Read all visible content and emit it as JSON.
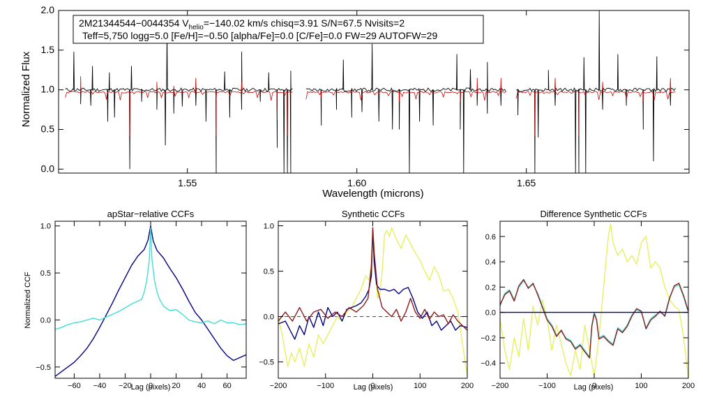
{
  "colors": {
    "axis": "#000000",
    "observed": "#000000",
    "model": "#cc0000",
    "navy": "#000080",
    "cyan": "#40e0d0",
    "yellow": "#e6f060",
    "darkred": "#8b1a1a",
    "zero_line": "#555555"
  },
  "header": {
    "line1": "2M21344544−0044354  V",
    "sub": "helio",
    "line1b": "=−140.02 km/s  chisq=3.91  S/N=67.5  Nvisits=2",
    "line2": "Teff=5,750 logg=5.0 [Fe/H]=−0.50 [alpha/Fe]=0.0 [C/Fe]=0.0 FW=29 AUTOFW=29"
  },
  "chart_data": [
    {
      "id": "spectrum",
      "type": "line",
      "title": "",
      "xlabel": "Wavelength (microns)",
      "ylabel": "Normalized Flux",
      "xlim": [
        1.512,
        1.698
      ],
      "ylim": [
        -0.05,
        2.0
      ],
      "xticks": [
        1.55,
        1.6,
        1.65
      ],
      "xtick_labels": [
        "1.55",
        "1.60",
        "1.65"
      ],
      "yticks": [
        0.0,
        0.5,
        1.0,
        1.5,
        2.0
      ],
      "ytick_labels": [
        "0.0",
        "0.5",
        "1.0",
        "1.5",
        "2.0"
      ],
      "chips": [
        [
          1.514,
          1.581
        ],
        [
          1.585,
          1.644
        ],
        [
          1.647,
          1.694
        ]
      ],
      "series": [
        {
          "name": "observed",
          "continuum": 1.0,
          "color": "#000000"
        },
        {
          "name": "model",
          "continuum": 0.97,
          "color": "#cc0000"
        }
      ],
      "spikes": [
        [
          1.5165,
          1.48
        ],
        [
          1.522,
          1.3
        ],
        [
          1.527,
          1.22
        ],
        [
          1.5335,
          1.3
        ],
        [
          1.544,
          1.78
        ],
        [
          1.561,
          1.23
        ],
        [
          1.566,
          1.48
        ],
        [
          1.574,
          1.22
        ],
        [
          1.5805,
          1.24
        ],
        [
          1.596,
          1.38
        ],
        [
          1.6045,
          1.58
        ],
        [
          1.6295,
          1.45
        ],
        [
          1.6335,
          1.26
        ],
        [
          1.6385,
          1.35
        ],
        [
          1.6565,
          1.25
        ],
        [
          1.667,
          1.41
        ],
        [
          1.6715,
          2.0
        ],
        [
          1.677,
          1.45
        ],
        [
          1.6885,
          1.42
        ]
      ],
      "dips": [
        [
          1.5185,
          0.82
        ],
        [
          1.5215,
          0.8
        ],
        [
          1.5265,
          0.6
        ],
        [
          1.5285,
          0.65
        ],
        [
          1.533,
          0.0
        ],
        [
          1.5365,
          0.85
        ],
        [
          1.541,
          0.75
        ],
        [
          1.5435,
          0.3
        ],
        [
          1.546,
          0.7
        ],
        [
          1.5485,
          0.79
        ],
        [
          1.5525,
          0.8
        ],
        [
          1.5555,
          0.6
        ],
        [
          1.5585,
          -0.05
        ],
        [
          1.5625,
          0.65
        ],
        [
          1.566,
          0.75
        ],
        [
          1.5715,
          0.85
        ],
        [
          1.5765,
          0.27
        ],
        [
          1.5785,
          -0.05
        ],
        [
          1.5795,
          -0.05
        ],
        [
          1.5805,
          -0.05
        ],
        [
          1.5895,
          0.55
        ],
        [
          1.594,
          0.75
        ],
        [
          1.5985,
          0.65
        ],
        [
          1.6015,
          0.72
        ],
        [
          1.6065,
          0.6
        ],
        [
          1.6105,
          0.5
        ],
        [
          1.6125,
          0.5
        ],
        [
          1.6155,
          -0.05
        ],
        [
          1.6185,
          0.6
        ],
        [
          1.6225,
          0.55
        ],
        [
          1.6305,
          0.5
        ],
        [
          1.6315,
          -0.05
        ],
        [
          1.6355,
          0.8
        ],
        [
          1.6385,
          0.7
        ],
        [
          1.6425,
          0.8
        ],
        [
          1.6475,
          0.68
        ],
        [
          1.6525,
          -0.05
        ],
        [
          1.6535,
          0.4
        ],
        [
          1.6585,
          0.8
        ],
        [
          1.6645,
          -0.05
        ],
        [
          1.6655,
          -0.05
        ],
        [
          1.6675,
          -0.05
        ],
        [
          1.6725,
          0.75
        ],
        [
          1.6795,
          0.8
        ],
        [
          1.6845,
          0.5
        ],
        [
          1.6875,
          0.1
        ],
        [
          1.6925,
          0.8
        ]
      ]
    },
    {
      "id": "apstar_ccf",
      "type": "line",
      "title": "apStar−relative CCFs",
      "xlabel": "Lag (pixels)",
      "ylabel": "Normalized CCF",
      "xlim": [
        -75,
        75
      ],
      "ylim": [
        -0.62,
        1.05
      ],
      "xticks": [
        -60,
        -40,
        -20,
        0,
        20,
        40,
        60
      ],
      "xtick_labels": [
        "−60",
        "−40",
        "−20",
        "0",
        "20",
        "40",
        "60"
      ],
      "yticks": [
        -0.5,
        0.0,
        0.5,
        1.0
      ],
      "ytick_labels": [
        "−0.5",
        "0.0",
        "0.5",
        "1.0"
      ],
      "series": [
        {
          "name": "navy",
          "color": "#000080",
          "x": [
            -75,
            -70,
            -65,
            -60,
            -55,
            -50,
            -45,
            -40,
            -35,
            -30,
            -25,
            -20,
            -15,
            -10,
            -5,
            -2,
            0,
            2,
            5,
            10,
            15,
            20,
            25,
            30,
            35,
            40,
            45,
            50,
            55,
            60,
            65,
            70,
            75
          ],
          "y": [
            -0.6,
            -0.55,
            -0.5,
            -0.45,
            -0.38,
            -0.3,
            -0.2,
            -0.08,
            0.05,
            0.18,
            0.32,
            0.45,
            0.58,
            0.68,
            0.75,
            0.85,
            1.0,
            0.84,
            0.74,
            0.66,
            0.55,
            0.45,
            0.33,
            0.2,
            0.08,
            0.0,
            -0.1,
            -0.2,
            -0.3,
            -0.38,
            -0.43,
            -0.4,
            -0.37
          ]
        },
        {
          "name": "cyan",
          "color": "#40e0d0",
          "x": [
            -75,
            -70,
            -65,
            -60,
            -55,
            -50,
            -45,
            -40,
            -35,
            -30,
            -25,
            -20,
            -15,
            -10,
            -7,
            -5,
            -3,
            -1,
            0,
            1,
            3,
            5,
            7,
            10,
            15,
            20,
            25,
            30,
            35,
            40,
            45,
            50,
            55,
            60,
            65,
            70,
            75
          ],
          "y": [
            -0.1,
            -0.08,
            -0.05,
            -0.03,
            -0.02,
            0.0,
            0.02,
            0.0,
            0.03,
            0.06,
            0.09,
            0.13,
            0.17,
            0.2,
            0.22,
            0.3,
            0.42,
            0.65,
            0.98,
            0.65,
            0.42,
            0.3,
            0.22,
            0.15,
            0.1,
            0.11,
            0.06,
            0.0,
            -0.02,
            -0.03,
            -0.01,
            -0.04,
            0.0,
            -0.03,
            -0.03,
            -0.05,
            -0.04
          ]
        }
      ]
    },
    {
      "id": "synthetic_ccf",
      "type": "line",
      "title": "Synthetic CCFs",
      "xlabel": "Lag (pixels)",
      "ylabel": "",
      "xlim": [
        -200,
        200
      ],
      "ylim": [
        -0.68,
        1.05
      ],
      "xticks": [
        -200,
        -100,
        0,
        100,
        200
      ],
      "xtick_labels": [
        "−200",
        "−100",
        "0",
        "100",
        "200"
      ],
      "yticks": [
        -0.5,
        0.0,
        0.5,
        1.0
      ],
      "ytick_labels": [
        "−0.5",
        "0.0",
        "0.5",
        "1.0"
      ],
      "zero_line": true,
      "series": [
        {
          "name": "yellow",
          "color": "#e6f060",
          "x": [
            -200,
            -190,
            -180,
            -172,
            -165,
            -155,
            -145,
            -135,
            -125,
            -115,
            -105,
            -95,
            -85,
            -75,
            -65,
            -55,
            -45,
            -35,
            -25,
            -15,
            -8,
            -3,
            0,
            5,
            10,
            15,
            20,
            25,
            30,
            35,
            40,
            50,
            60,
            70,
            80,
            90,
            100,
            110,
            120,
            130,
            140,
            150,
            160,
            170,
            180,
            190,
            200
          ],
          "y": [
            0.0,
            -0.25,
            -0.55,
            -0.4,
            -0.5,
            -0.35,
            -0.55,
            -0.3,
            -0.45,
            -0.2,
            -0.3,
            -0.2,
            -0.1,
            0.0,
            -0.05,
            0.05,
            0.1,
            0.2,
            0.3,
            0.45,
            0.4,
            0.6,
            0.98,
            0.6,
            0.2,
            0.25,
            0.5,
            0.9,
            0.95,
            0.88,
            0.98,
            0.85,
            0.75,
            0.9,
            0.8,
            0.7,
            0.62,
            0.5,
            0.4,
            0.55,
            0.45,
            0.28,
            0.3,
            0.2,
            0.05,
            -0.3,
            -0.65
          ]
        },
        {
          "name": "navy",
          "color": "#000080",
          "x": [
            -200,
            -185,
            -175,
            -165,
            -155,
            -145,
            -135,
            -125,
            -115,
            -105,
            -95,
            -85,
            -75,
            -65,
            -55,
            -45,
            -35,
            -25,
            -15,
            -8,
            -3,
            0,
            3,
            8,
            15,
            25,
            35,
            45,
            55,
            65,
            75,
            85,
            95,
            105,
            115,
            125,
            135,
            145,
            155,
            165,
            175,
            185,
            200
          ],
          "y": [
            -0.08,
            -0.05,
            -0.15,
            -0.25,
            -0.1,
            -0.2,
            0.0,
            -0.12,
            0.05,
            -0.1,
            0.1,
            0.0,
            0.05,
            -0.05,
            0.08,
            0.1,
            0.12,
            0.15,
            0.22,
            0.3,
            0.45,
            0.95,
            0.6,
            0.35,
            0.3,
            0.3,
            0.28,
            0.3,
            0.25,
            0.3,
            0.32,
            0.2,
            0.05,
            -0.02,
            0.05,
            -0.1,
            -0.05,
            -0.15,
            -0.1,
            -0.05,
            -0.15,
            -0.1,
            -0.12
          ]
        },
        {
          "name": "darkred",
          "color": "#8b1a1a",
          "x": [
            -200,
            -185,
            -170,
            -155,
            -140,
            -125,
            -110,
            -95,
            -80,
            -65,
            -50,
            -35,
            -20,
            -10,
            -3,
            0,
            3,
            10,
            20,
            30,
            40,
            50,
            60,
            70,
            80,
            90,
            100,
            110,
            120,
            130,
            140,
            150,
            160,
            170,
            180,
            190,
            200
          ],
          "y": [
            -0.05,
            0.05,
            -0.05,
            0.1,
            -0.05,
            0.05,
            0.08,
            -0.02,
            0.05,
            0.0,
            0.1,
            0.05,
            0.12,
            0.2,
            0.55,
            0.98,
            0.7,
            0.3,
            0.1,
            0.05,
            0.0,
            0.08,
            -0.05,
            0.05,
            0.2,
            0.05,
            -0.02,
            0.08,
            -0.03,
            0.05,
            0.0,
            0.02,
            -0.08,
            0.02,
            -0.05,
            -0.1,
            -0.15
          ]
        }
      ]
    },
    {
      "id": "difference_ccf",
      "type": "line",
      "title": "Difference Synthetic CCFs",
      "xlabel": "Lag (pixels)",
      "ylabel": "",
      "xlim": [
        -200,
        200
      ],
      "ylim": [
        -0.52,
        0.72
      ],
      "xticks": [
        -200,
        -100,
        0,
        100,
        200
      ],
      "xtick_labels": [
        "−200",
        "−100",
        "0",
        "100",
        "200"
      ],
      "yticks": [
        -0.4,
        -0.2,
        0.0,
        0.2,
        0.4,
        0.6
      ],
      "ytick_labels": [
        "−0.4",
        "−0.2",
        "0.0",
        "0.2",
        "0.4",
        "0.6"
      ],
      "series": [
        {
          "name": "yellow",
          "color": "#e6f060",
          "x": [
            -200,
            -190,
            -180,
            -170,
            -160,
            -150,
            -140,
            -130,
            -120,
            -110,
            -100,
            -90,
            -80,
            -70,
            -60,
            -50,
            -40,
            -30,
            -20,
            -10,
            0,
            10,
            20,
            30,
            35,
            40,
            50,
            60,
            70,
            80,
            90,
            100,
            110,
            120,
            130,
            140,
            150,
            160,
            170,
            180,
            190,
            200
          ],
          "y": [
            -0.05,
            -0.3,
            -0.45,
            -0.2,
            -0.35,
            -0.05,
            -0.3,
            0.05,
            -0.1,
            0.1,
            -0.05,
            -0.3,
            -0.1,
            -0.25,
            -0.4,
            -0.5,
            -0.3,
            -0.45,
            -0.1,
            -0.3,
            -0.5,
            -0.2,
            0.2,
            0.6,
            0.7,
            0.55,
            0.45,
            0.5,
            0.4,
            0.45,
            0.38,
            0.55,
            0.6,
            0.35,
            0.4,
            0.35,
            0.2,
            0.1,
            0.05,
            0.02,
            -0.2,
            -0.55
          ]
        },
        {
          "name": "cyan",
          "color": "#40e0d0",
          "x": [
            -200,
            -190,
            -180,
            -170,
            -160,
            -150,
            -140,
            -130,
            -120,
            -110,
            -100,
            -90,
            -80,
            -70,
            -60,
            -50,
            -40,
            -30,
            -20,
            -10,
            -5,
            0,
            5,
            10,
            20,
            30,
            40,
            50,
            60,
            70,
            80,
            90,
            100,
            110,
            120,
            130,
            140,
            150,
            160,
            170,
            180,
            190,
            200
          ],
          "y": [
            0.05,
            0.15,
            0.18,
            0.1,
            0.2,
            0.25,
            0.2,
            0.22,
            0.15,
            0.05,
            -0.05,
            -0.1,
            -0.18,
            -0.15,
            -0.2,
            -0.22,
            -0.28,
            -0.25,
            -0.3,
            -0.35,
            -0.1,
            0.0,
            -0.05,
            -0.2,
            -0.18,
            -0.22,
            -0.25,
            -0.12,
            -0.15,
            -0.1,
            -0.02,
            0.02,
            0.0,
            -0.12,
            -0.05,
            -0.02,
            0.0,
            -0.02,
            0.12,
            0.2,
            0.22,
            0.12,
            0.0
          ]
        },
        {
          "name": "darkred",
          "color": "#8b1a1a",
          "x": [
            -200,
            -190,
            -180,
            -170,
            -160,
            -150,
            -140,
            -130,
            -120,
            -110,
            -100,
            -90,
            -80,
            -70,
            -60,
            -50,
            -40,
            -30,
            -20,
            -10,
            -5,
            0,
            5,
            10,
            20,
            30,
            40,
            50,
            60,
            70,
            80,
            90,
            100,
            110,
            120,
            130,
            140,
            150,
            160,
            170,
            180,
            190,
            200
          ],
          "y": [
            0.06,
            0.14,
            0.17,
            0.09,
            0.21,
            0.26,
            0.19,
            0.23,
            0.14,
            0.04,
            -0.06,
            -0.11,
            -0.19,
            -0.14,
            -0.21,
            -0.23,
            -0.29,
            -0.26,
            -0.31,
            -0.36,
            -0.11,
            -0.01,
            -0.06,
            -0.21,
            -0.19,
            -0.23,
            -0.26,
            -0.13,
            -0.16,
            -0.11,
            -0.03,
            0.03,
            0.01,
            -0.13,
            -0.06,
            -0.03,
            0.01,
            -0.03,
            0.11,
            0.21,
            0.23,
            0.13,
            0.01
          ]
        },
        {
          "name": "navy",
          "color": "#000080",
          "x": [
            -200,
            -100,
            0,
            100,
            200
          ],
          "y": [
            0.0,
            0.0,
            0.0,
            0.0,
            0.0
          ]
        }
      ]
    }
  ]
}
